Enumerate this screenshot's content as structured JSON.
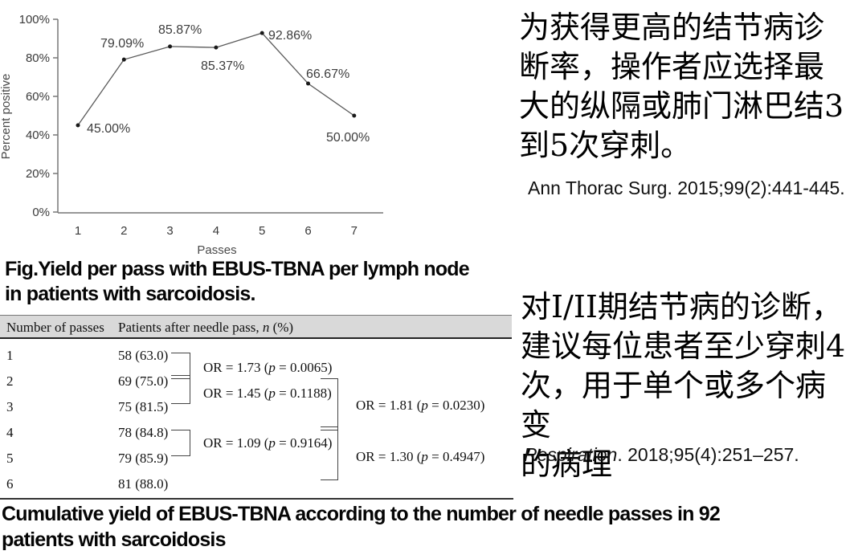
{
  "chart_data": {
    "type": "line",
    "x": [
      1,
      2,
      3,
      4,
      5,
      6,
      7
    ],
    "values": [
      45.0,
      79.09,
      85.87,
      85.37,
      92.86,
      66.67,
      50.0
    ],
    "labels": [
      "45.00%",
      "79.09%",
      "85.87%",
      "85.37%",
      "92.86%",
      "66.67%",
      "50.00%"
    ],
    "title": "",
    "xlabel": "Passes",
    "ylabel": "Percent positive",
    "y_ticks": [
      "0%",
      "20%",
      "40%",
      "60%",
      "80%",
      "100%"
    ],
    "ylim": [
      0,
      100
    ],
    "grid": false,
    "legend": "none",
    "line_color": "#595959",
    "marker_color": "#1a1a1a"
  },
  "fig_caption": {
    "lines": [
      "Fig.Yield per pass with EBUS-TBNA per lymph node",
      "in patients with sarcoidosis."
    ]
  },
  "table": {
    "header_col1": "Number of passes",
    "header_col2": {
      "before": "Patients after needle pass, ",
      "italic": "n",
      "after": " (%)"
    },
    "rows": [
      {
        "pass": "1",
        "value": "58 (63.0)"
      },
      {
        "pass": "2",
        "value": "69 (75.0)"
      },
      {
        "pass": "3",
        "value": "75 (81.5)"
      },
      {
        "pass": "4",
        "value": "78 (84.8)"
      },
      {
        "pass": "5",
        "value": "79 (85.9)"
      },
      {
        "pass": "6",
        "value": "81 (88.0)"
      }
    ],
    "or_annotations": [
      {
        "before": "OR = 1.73 (",
        "italic": "p",
        "after": " = 0.0065)"
      },
      {
        "before": "OR = 1.45 (",
        "italic": "p",
        "after": " = 0.1188)"
      },
      {
        "before": "OR = 1.09 (",
        "italic": "p",
        "after": " = 0.9164)"
      },
      {
        "before": "OR = 1.81 (",
        "italic": "p",
        "after": " = 0.0230)"
      },
      {
        "before": "OR = 1.30 (",
        "italic": "p",
        "after": " = 0.4947)"
      }
    ]
  },
  "bottom_caption": {
    "lines": [
      "Cumulative yield of EBUS-TBNA according to the number of needle passes in 92",
      "patients with sarcoidosis"
    ]
  },
  "right_panel": {
    "note1": {
      "lines": [
        "为获得更高的结节病诊",
        "断率，操作者应选择最",
        "大的纵隔或肺门淋巴结3",
        "到5次穿刺。"
      ]
    },
    "citation1": "Ann Thorac Surg. 2015;99(2):441-445.",
    "note2": {
      "lines": [
        "对I/II期结节病的诊断，",
        "建议每位患者至少穿刺4",
        "次，用于单个或多个病变",
        "的病理"
      ]
    },
    "citation2": {
      "italic": "Respiration",
      "after": ". 2018;95(4):251–257."
    }
  },
  "colors": {
    "table_header_bg": "#d9d9d9",
    "axis": "#777777",
    "chart_line": "#595959"
  }
}
